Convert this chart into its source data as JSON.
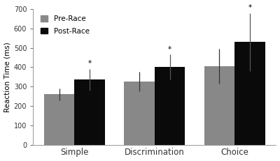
{
  "categories": [
    "Simple",
    "Discrimination",
    "Choice"
  ],
  "pre_race_values": [
    260,
    325,
    405
  ],
  "post_race_values": [
    335,
    400,
    530
  ],
  "pre_race_errors": [
    30,
    50,
    90
  ],
  "post_race_errors": [
    55,
    65,
    150
  ],
  "pre_race_color": "#888888",
  "post_race_color": "#0a0a0a",
  "ylabel": "Reaction Time (ms)",
  "ylim": [
    0,
    700
  ],
  "yticks": [
    0,
    100,
    200,
    300,
    400,
    500,
    600,
    700
  ],
  "legend_labels": [
    "Pre-Race",
    "Post-Race"
  ],
  "significance_post": [
    true,
    true,
    true
  ],
  "bar_width": 0.38,
  "background_color": "#ffffff"
}
